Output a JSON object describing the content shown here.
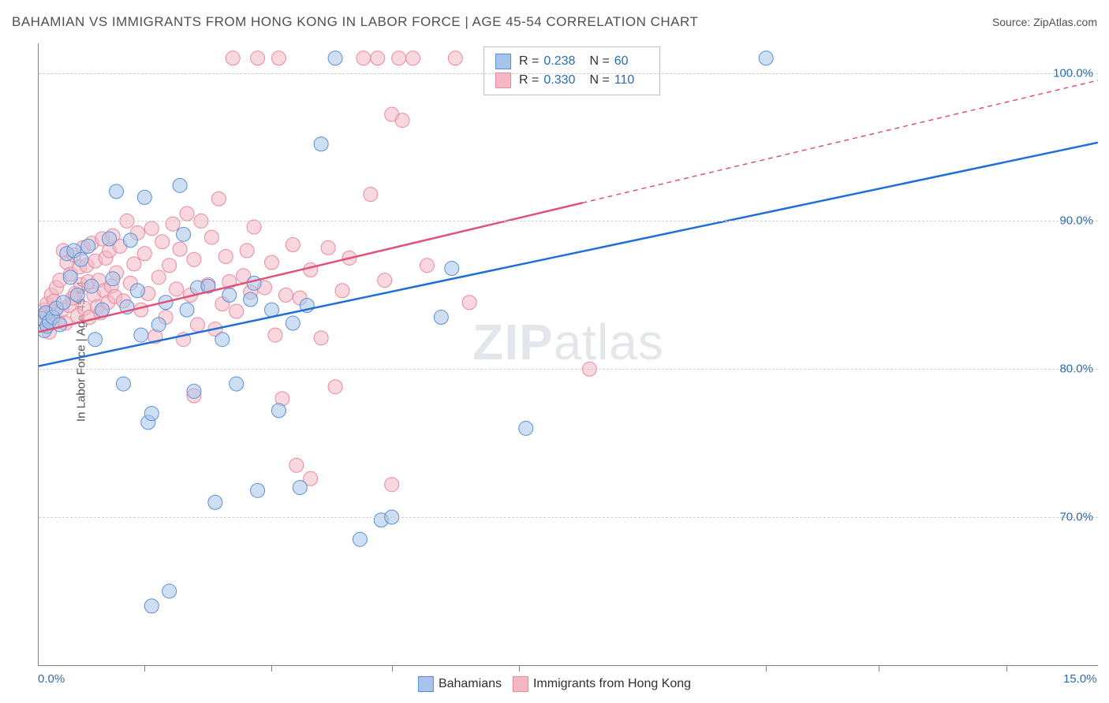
{
  "header": {
    "title": "BAHAMIAN VS IMMIGRANTS FROM HONG KONG IN LABOR FORCE | AGE 45-54 CORRELATION CHART",
    "source_label": "Source: ",
    "source_value": "ZipAtlas.com"
  },
  "watermark": {
    "zip": "ZIP",
    "atlas": "atlas"
  },
  "chart": {
    "type": "scatter",
    "y_axis_label": "In Labor Force | Age 45-54",
    "xlim": [
      0.0,
      15.0
    ],
    "ylim": [
      60.0,
      102.0
    ],
    "x_ticks": [
      0.0,
      15.0
    ],
    "x_tick_labels": [
      "0.0%",
      "15.0%"
    ],
    "x_minor_ticks": [
      1.5,
      3.3,
      5.0,
      6.8,
      10.3,
      11.9,
      13.7
    ],
    "y_gridlines": [
      70.0,
      80.0,
      90.0,
      100.0
    ],
    "y_tick_labels": [
      "70.0%",
      "80.0%",
      "90.0%",
      "100.0%"
    ],
    "background_color": "#ffffff",
    "grid_color": "#d0d0d0",
    "axis_color": "#808080",
    "tick_label_color": "#2b6cb0",
    "label_color": "#505050",
    "marker_radius": 9,
    "marker_opacity": 0.55,
    "line_width": 2.5
  },
  "series": {
    "a": {
      "name": "Bahamians",
      "color_fill": "#a7c4ea",
      "color_stroke": "#5a8fd6",
      "line_color": "#1f6fd6",
      "R": "0.238",
      "N": "60",
      "regression": {
        "x1": 0.0,
        "y1": 80.2,
        "x2": 15.0,
        "y2": 95.3,
        "solid_until_x": 15.0
      },
      "points": [
        [
          0.05,
          83.4
        ],
        [
          0.08,
          82.6
        ],
        [
          0.1,
          83.8
        ],
        [
          0.12,
          82.9
        ],
        [
          0.15,
          83.2
        ],
        [
          0.2,
          83.5
        ],
        [
          0.25,
          84.1
        ],
        [
          0.3,
          83.0
        ],
        [
          0.35,
          84.5
        ],
        [
          0.4,
          87.8
        ],
        [
          0.45,
          86.2
        ],
        [
          0.5,
          88.0
        ],
        [
          0.55,
          85.0
        ],
        [
          0.6,
          87.4
        ],
        [
          0.7,
          88.3
        ],
        [
          0.75,
          85.6
        ],
        [
          0.8,
          82.0
        ],
        [
          0.9,
          84.0
        ],
        [
          1.0,
          88.8
        ],
        [
          1.05,
          86.1
        ],
        [
          1.1,
          92.0
        ],
        [
          1.2,
          79.0
        ],
        [
          1.25,
          84.2
        ],
        [
          1.3,
          88.7
        ],
        [
          1.4,
          85.3
        ],
        [
          1.45,
          82.3
        ],
        [
          1.5,
          91.6
        ],
        [
          1.55,
          76.4
        ],
        [
          1.6,
          77.0
        ],
        [
          1.6,
          64.0
        ],
        [
          1.7,
          83.0
        ],
        [
          1.8,
          84.5
        ],
        [
          1.85,
          65.0
        ],
        [
          2.0,
          92.4
        ],
        [
          2.05,
          89.1
        ],
        [
          2.1,
          84.0
        ],
        [
          2.2,
          78.5
        ],
        [
          2.25,
          85.5
        ],
        [
          2.4,
          85.6
        ],
        [
          2.5,
          71.0
        ],
        [
          2.6,
          82.0
        ],
        [
          2.7,
          85.0
        ],
        [
          2.8,
          79.0
        ],
        [
          3.0,
          84.7
        ],
        [
          3.05,
          85.8
        ],
        [
          3.1,
          71.8
        ],
        [
          3.3,
          84.0
        ],
        [
          3.4,
          77.2
        ],
        [
          3.6,
          83.1
        ],
        [
          3.7,
          72.0
        ],
        [
          3.8,
          84.3
        ],
        [
          4.0,
          95.2
        ],
        [
          4.2,
          101.0
        ],
        [
          4.55,
          68.5
        ],
        [
          4.85,
          69.8
        ],
        [
          5.0,
          70.0
        ],
        [
          5.7,
          83.5
        ],
        [
          5.85,
          86.8
        ],
        [
          6.9,
          76.0
        ],
        [
          10.3,
          101.0
        ]
      ]
    },
    "b": {
      "name": "Immigrants from Hong Kong",
      "color_fill": "#f3b8c3",
      "color_stroke": "#e889a0",
      "line_color": "#e05277",
      "R": "0.330",
      "N": "110",
      "regression": {
        "x1": 0.0,
        "y1": 82.5,
        "x2": 15.0,
        "y2": 99.5,
        "solid_until_x": 7.7
      },
      "points": [
        [
          0.05,
          83.0
        ],
        [
          0.08,
          84.0
        ],
        [
          0.1,
          83.7
        ],
        [
          0.12,
          84.4
        ],
        [
          0.15,
          82.5
        ],
        [
          0.18,
          85.0
        ],
        [
          0.2,
          83.9
        ],
        [
          0.22,
          84.6
        ],
        [
          0.25,
          85.5
        ],
        [
          0.28,
          83.2
        ],
        [
          0.3,
          86.0
        ],
        [
          0.33,
          84.0
        ],
        [
          0.35,
          88.0
        ],
        [
          0.38,
          83.1
        ],
        [
          0.4,
          87.2
        ],
        [
          0.43,
          84.3
        ],
        [
          0.45,
          86.4
        ],
        [
          0.48,
          84.8
        ],
        [
          0.5,
          87.7
        ],
        [
          0.52,
          85.1
        ],
        [
          0.55,
          83.6
        ],
        [
          0.58,
          86.9
        ],
        [
          0.6,
          85.7
        ],
        [
          0.63,
          88.2
        ],
        [
          0.65,
          84.1
        ],
        [
          0.68,
          87.0
        ],
        [
          0.7,
          85.9
        ],
        [
          0.72,
          83.5
        ],
        [
          0.75,
          88.5
        ],
        [
          0.78,
          85.0
        ],
        [
          0.8,
          87.3
        ],
        [
          0.83,
          84.2
        ],
        [
          0.85,
          86.0
        ],
        [
          0.88,
          83.8
        ],
        [
          0.9,
          88.8
        ],
        [
          0.93,
          85.3
        ],
        [
          0.95,
          87.5
        ],
        [
          0.98,
          84.5
        ],
        [
          1.0,
          88.0
        ],
        [
          1.03,
          85.6
        ],
        [
          1.05,
          89.0
        ],
        [
          1.08,
          84.9
        ],
        [
          1.1,
          86.5
        ],
        [
          1.15,
          88.3
        ],
        [
          1.2,
          84.6
        ],
        [
          1.25,
          90.0
        ],
        [
          1.3,
          85.8
        ],
        [
          1.35,
          87.1
        ],
        [
          1.4,
          89.2
        ],
        [
          1.45,
          84.0
        ],
        [
          1.5,
          87.8
        ],
        [
          1.55,
          85.1
        ],
        [
          1.6,
          89.5
        ],
        [
          1.65,
          82.2
        ],
        [
          1.7,
          86.2
        ],
        [
          1.75,
          88.6
        ],
        [
          1.8,
          83.5
        ],
        [
          1.85,
          87.0
        ],
        [
          1.9,
          89.8
        ],
        [
          1.95,
          85.4
        ],
        [
          2.0,
          88.1
        ],
        [
          2.05,
          82.0
        ],
        [
          2.1,
          90.5
        ],
        [
          2.15,
          85.0
        ],
        [
          2.2,
          87.4
        ],
        [
          2.25,
          83.0
        ],
        [
          2.3,
          90.0
        ],
        [
          2.4,
          85.7
        ],
        [
          2.45,
          88.9
        ],
        [
          2.5,
          82.7
        ],
        [
          2.55,
          91.5
        ],
        [
          2.6,
          84.4
        ],
        [
          2.65,
          87.6
        ],
        [
          2.7,
          85.9
        ],
        [
          2.75,
          101.0
        ],
        [
          2.8,
          83.9
        ],
        [
          2.9,
          86.3
        ],
        [
          2.95,
          88.0
        ],
        [
          3.0,
          85.2
        ],
        [
          3.05,
          89.6
        ],
        [
          3.1,
          101.0
        ],
        [
          3.2,
          85.5
        ],
        [
          3.3,
          87.2
        ],
        [
          3.35,
          82.3
        ],
        [
          3.4,
          101.0
        ],
        [
          3.5,
          85.0
        ],
        [
          3.6,
          88.4
        ],
        [
          3.65,
          73.5
        ],
        [
          3.7,
          84.8
        ],
        [
          3.85,
          72.6
        ],
        [
          3.85,
          86.7
        ],
        [
          4.0,
          82.1
        ],
        [
          4.1,
          88.2
        ],
        [
          4.2,
          78.8
        ],
        [
          4.3,
          85.3
        ],
        [
          4.4,
          87.5
        ],
        [
          4.6,
          101.0
        ],
        [
          4.7,
          91.8
        ],
        [
          4.8,
          101.0
        ],
        [
          4.9,
          86.0
        ],
        [
          5.0,
          97.2
        ],
        [
          5.0,
          72.2
        ],
        [
          5.1,
          101.0
        ],
        [
          5.15,
          96.8
        ],
        [
          5.3,
          101.0
        ],
        [
          5.5,
          87.0
        ],
        [
          5.9,
          101.0
        ],
        [
          6.1,
          84.5
        ],
        [
          7.8,
          80.0
        ],
        [
          3.45,
          78.0
        ],
        [
          2.2,
          78.2
        ]
      ]
    }
  },
  "legend_top": {
    "r_label": "R =",
    "n_label": "N ="
  },
  "legend_bottom": {
    "a_label": "Bahamians",
    "b_label": "Immigrants from Hong Kong"
  }
}
